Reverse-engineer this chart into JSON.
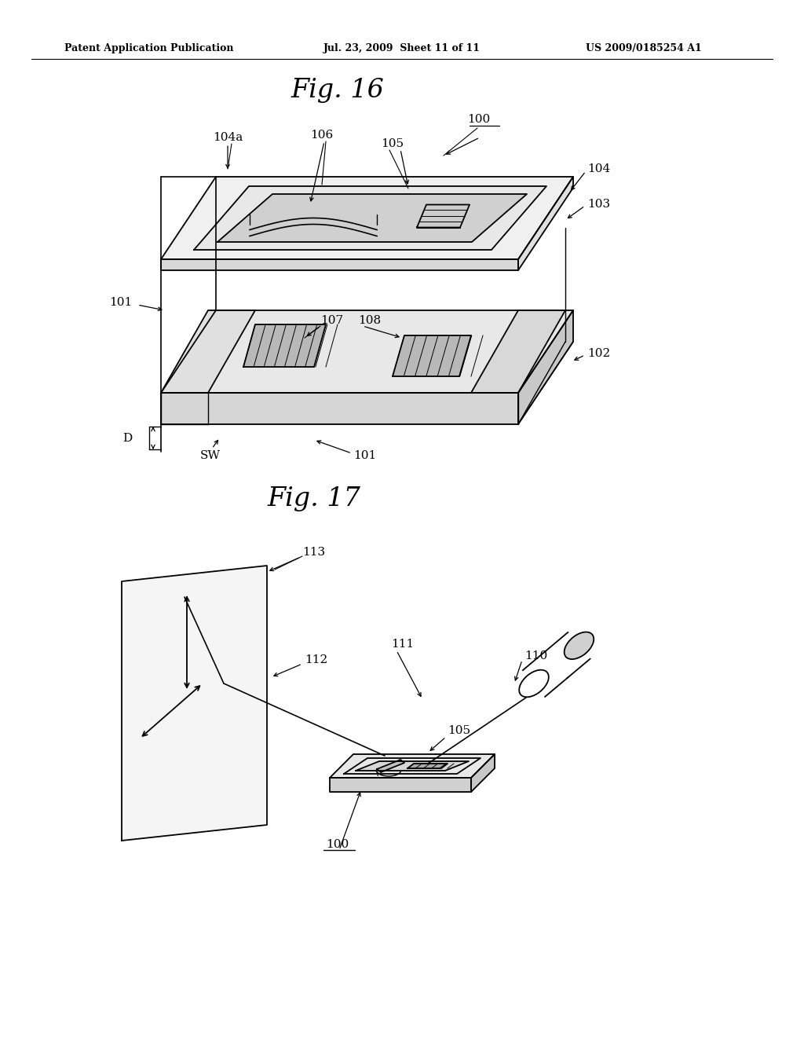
{
  "bg_color": "#ffffff",
  "text_color": "#000000",
  "header_left": "Patent Application Publication",
  "header_mid": "Jul. 23, 2009  Sheet 11 of 11",
  "header_right": "US 2009/0185254 A1",
  "fig16_title": "Fig. 16",
  "fig17_title": "Fig. 17"
}
